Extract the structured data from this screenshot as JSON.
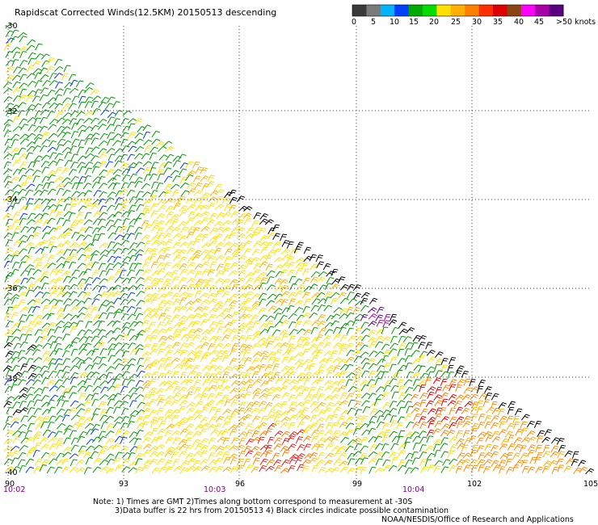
{
  "title": "Rapidscat Corrected Winds(12.5KM) 20150513 descending",
  "legend": {
    "unit_label": ">50 knots",
    "ticks": [
      "0",
      "5",
      "10",
      "15",
      "20",
      "25",
      "30",
      "35",
      "40",
      "45"
    ],
    "colors": [
      "#3a3a3a",
      "#7a7a7a",
      "#00b4ff",
      "#0040ff",
      "#00aa00",
      "#00dd00",
      "#ffe000",
      "#ffb000",
      "#ff8000",
      "#ff3000",
      "#dd0000",
      "#8b4513",
      "#ff00ff",
      "#aa00aa",
      "#5a0080"
    ]
  },
  "lat_labels": [
    "-30",
    "-32",
    "-34",
    "-36",
    "-38",
    "-40"
  ],
  "lon_labels": [
    "90",
    "93",
    "96",
    "99",
    "102",
    "105"
  ],
  "time_labels": [
    "10:02",
    "10:03",
    "10:04"
  ],
  "notes": {
    "line1": "Note: 1) Times are GMT 2)Times along bottom correspond to measurement at -30S",
    "line2": "3)Data buffer is 22 hrs from 20150513 4) Black circles indicate possible contamination",
    "credit": "NOAA/NESDIS/Office of Research and Applications"
  },
  "map": {
    "grid": "dotted",
    "lat_range": [
      -40,
      -30
    ],
    "lon_range": [
      90,
      105
    ],
    "swath_edge": "diagonal from top-left to right side"
  }
}
